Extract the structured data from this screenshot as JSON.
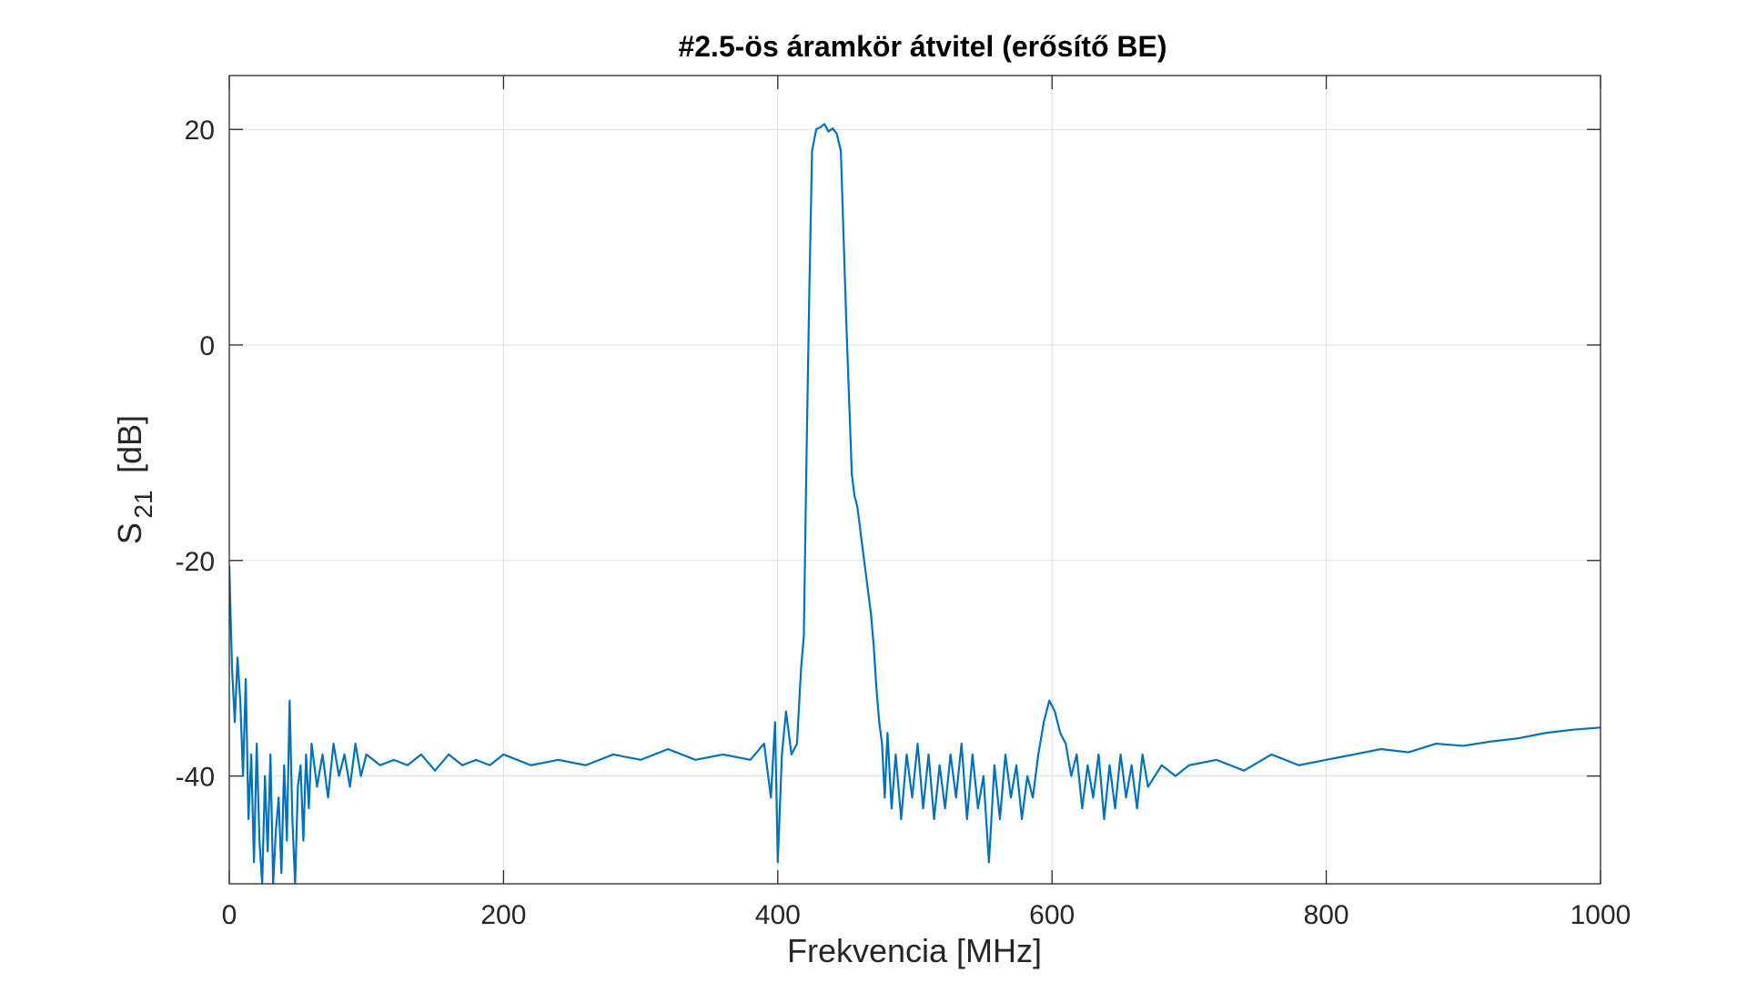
{
  "chart_data": {
    "type": "line",
    "title": "#2.5-ös áramkör átvitel (erősítő BE)",
    "xlabel": "Frekvencia [MHz]",
    "ylabel": {
      "main": "S",
      "subscript": "21",
      "unit": "[dB]"
    },
    "xlim": [
      0,
      1000
    ],
    "ylim": [
      -50,
      25
    ],
    "xticks": [
      0,
      200,
      400,
      600,
      800,
      1000
    ],
    "yticks": [
      -40,
      -20,
      0,
      20
    ],
    "xtick_labels": [
      "0",
      "200",
      "400",
      "600",
      "800",
      "1000"
    ],
    "ytick_labels": [
      "-40",
      "-20",
      "0",
      "20"
    ],
    "grid": true,
    "series": [
      {
        "color": "#0072BD",
        "points": [
          [
            0,
            -20.5
          ],
          [
            2,
            -30
          ],
          [
            4,
            -35
          ],
          [
            6,
            -29
          ],
          [
            8,
            -33
          ],
          [
            10,
            -40
          ],
          [
            12,
            -31
          ],
          [
            14,
            -44
          ],
          [
            16,
            -38
          ],
          [
            18,
            -48
          ],
          [
            20,
            -37
          ],
          [
            22,
            -46
          ],
          [
            24,
            -50
          ],
          [
            26,
            -40
          ],
          [
            28,
            -47
          ],
          [
            30,
            -38
          ],
          [
            32,
            -50
          ],
          [
            34,
            -45
          ],
          [
            36,
            -42
          ],
          [
            38,
            -49
          ],
          [
            40,
            -39
          ],
          [
            42,
            -46
          ],
          [
            44,
            -33
          ],
          [
            46,
            -44
          ],
          [
            48,
            -50
          ],
          [
            50,
            -41
          ],
          [
            52,
            -39
          ],
          [
            54,
            -46
          ],
          [
            56,
            -38
          ],
          [
            58,
            -43
          ],
          [
            60,
            -37
          ],
          [
            64,
            -41
          ],
          [
            68,
            -38
          ],
          [
            72,
            -42
          ],
          [
            76,
            -37
          ],
          [
            80,
            -40
          ],
          [
            84,
            -38
          ],
          [
            88,
            -41
          ],
          [
            92,
            -37
          ],
          [
            96,
            -40
          ],
          [
            100,
            -38
          ],
          [
            110,
            -39
          ],
          [
            120,
            -38.5
          ],
          [
            130,
            -39
          ],
          [
            140,
            -38
          ],
          [
            150,
            -39.5
          ],
          [
            160,
            -38
          ],
          [
            170,
            -39
          ],
          [
            180,
            -38.5
          ],
          [
            190,
            -39
          ],
          [
            200,
            -38
          ],
          [
            220,
            -39
          ],
          [
            240,
            -38.5
          ],
          [
            260,
            -39
          ],
          [
            280,
            -38
          ],
          [
            300,
            -38.5
          ],
          [
            320,
            -37.5
          ],
          [
            340,
            -38.5
          ],
          [
            360,
            -38
          ],
          [
            380,
            -38.5
          ],
          [
            390,
            -37
          ],
          [
            395,
            -42
          ],
          [
            398,
            -35
          ],
          [
            400,
            -48
          ],
          [
            403,
            -38
          ],
          [
            406,
            -34
          ],
          [
            410,
            -38
          ],
          [
            414,
            -37
          ],
          [
            417,
            -30
          ],
          [
            419,
            -27
          ],
          [
            421,
            -10
          ],
          [
            423,
            5
          ],
          [
            425,
            18
          ],
          [
            428,
            20
          ],
          [
            431,
            20.2
          ],
          [
            434,
            20.5
          ],
          [
            437,
            19.8
          ],
          [
            440,
            20.1
          ],
          [
            443,
            19.6
          ],
          [
            446,
            18
          ],
          [
            448,
            10
          ],
          [
            450,
            2
          ],
          [
            452,
            -5
          ],
          [
            454,
            -12
          ],
          [
            456,
            -14
          ],
          [
            458,
            -15
          ],
          [
            460,
            -17
          ],
          [
            462,
            -19
          ],
          [
            464,
            -21
          ],
          [
            466,
            -23
          ],
          [
            468,
            -25
          ],
          [
            470,
            -28
          ],
          [
            472,
            -32
          ],
          [
            474,
            -35
          ],
          [
            476,
            -37
          ],
          [
            478,
            -42
          ],
          [
            480,
            -36
          ],
          [
            483,
            -43
          ],
          [
            486,
            -38
          ],
          [
            490,
            -44
          ],
          [
            494,
            -38
          ],
          [
            498,
            -42
          ],
          [
            502,
            -37
          ],
          [
            506,
            -43
          ],
          [
            510,
            -38
          ],
          [
            514,
            -44
          ],
          [
            518,
            -39
          ],
          [
            522,
            -43
          ],
          [
            526,
            -38
          ],
          [
            530,
            -42
          ],
          [
            534,
            -37
          ],
          [
            538,
            -44
          ],
          [
            542,
            -38
          ],
          [
            546,
            -43
          ],
          [
            550,
            -40
          ],
          [
            554,
            -48
          ],
          [
            558,
            -39
          ],
          [
            562,
            -44
          ],
          [
            566,
            -38
          ],
          [
            570,
            -42
          ],
          [
            574,
            -39
          ],
          [
            578,
            -44
          ],
          [
            582,
            -40
          ],
          [
            586,
            -42
          ],
          [
            590,
            -38
          ],
          [
            594,
            -35
          ],
          [
            598,
            -33
          ],
          [
            602,
            -34
          ],
          [
            606,
            -36
          ],
          [
            610,
            -37
          ],
          [
            614,
            -40
          ],
          [
            618,
            -38
          ],
          [
            622,
            -43
          ],
          [
            626,
            -39
          ],
          [
            630,
            -42
          ],
          [
            634,
            -38
          ],
          [
            638,
            -44
          ],
          [
            642,
            -39
          ],
          [
            646,
            -43
          ],
          [
            650,
            -38
          ],
          [
            654,
            -42
          ],
          [
            658,
            -39
          ],
          [
            662,
            -43
          ],
          [
            666,
            -38
          ],
          [
            670,
            -41
          ],
          [
            680,
            -39
          ],
          [
            690,
            -40
          ],
          [
            700,
            -39
          ],
          [
            720,
            -38.5
          ],
          [
            740,
            -39.5
          ],
          [
            760,
            -38
          ],
          [
            780,
            -39
          ],
          [
            800,
            -38.5
          ],
          [
            820,
            -38
          ],
          [
            840,
            -37.5
          ],
          [
            860,
            -37.8
          ],
          [
            880,
            -37
          ],
          [
            900,
            -37.2
          ],
          [
            920,
            -36.8
          ],
          [
            940,
            -36.5
          ],
          [
            960,
            -36
          ],
          [
            980,
            -35.7
          ],
          [
            1000,
            -35.5
          ]
        ]
      }
    ]
  }
}
